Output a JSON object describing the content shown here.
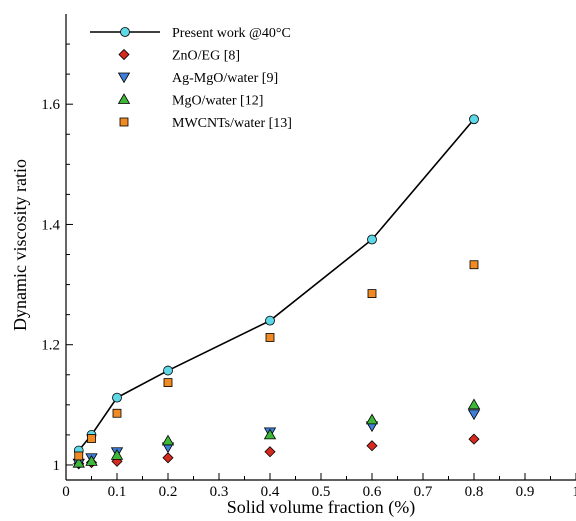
{
  "chart_data": {
    "type": "scatter",
    "xlabel": "Solid volume fraction (%)",
    "ylabel": "Dynamic viscosity ratio",
    "xlim": [
      0,
      1
    ],
    "ylim": [
      0.975,
      1.75
    ],
    "xticks": [
      "0",
      "0.1",
      "0.2",
      "0.3",
      "0.4",
      "0.5",
      "0.6",
      "0.7",
      "0.8",
      "0.9",
      "1"
    ],
    "yticks": [
      "1",
      "1.2",
      "1.4",
      "1.6"
    ],
    "ytick_values": [
      1,
      1.2,
      1.4,
      1.6
    ],
    "grid": false,
    "legend_position": "top-left",
    "series": [
      {
        "name": "Present work @40°C",
        "marker": "circle",
        "line": true,
        "color": "#5ed8e6",
        "x": [
          0.025,
          0.05,
          0.1,
          0.2,
          0.4,
          0.6,
          0.8
        ],
        "y": [
          1.024,
          1.05,
          1.112,
          1.157,
          1.24,
          1.375,
          1.575
        ]
      },
      {
        "name": "ZnO/EG [8]",
        "marker": "diamond",
        "line": false,
        "color": "#d42a1f",
        "x": [
          0.025,
          0.05,
          0.1,
          0.2,
          0.4,
          0.6,
          0.8
        ],
        "y": [
          1.002,
          1.004,
          1.006,
          1.012,
          1.022,
          1.032,
          1.043
        ]
      },
      {
        "name": "Ag-MgO/water [9]",
        "marker": "triangle-down",
        "line": false,
        "color": "#3f7fd8",
        "x": [
          0.025,
          0.05,
          0.1,
          0.2,
          0.4,
          0.6,
          0.8
        ],
        "y": [
          1.003,
          1.012,
          1.022,
          1.03,
          1.055,
          1.065,
          1.085
        ]
      },
      {
        "name": "MgO/water [12]",
        "marker": "triangle-up",
        "line": false,
        "color": "#3fb83a",
        "x": [
          0.025,
          0.05,
          0.1,
          0.2,
          0.4,
          0.6,
          0.8
        ],
        "y": [
          1.003,
          1.006,
          1.016,
          1.04,
          1.05,
          1.075,
          1.1
        ]
      },
      {
        "name": "MWCNTs/water [13]",
        "marker": "square",
        "line": false,
        "color": "#f08a24",
        "x": [
          0.025,
          0.05,
          0.1,
          0.2,
          0.4,
          0.6,
          0.8
        ],
        "y": [
          1.015,
          1.044,
          1.086,
          1.137,
          1.212,
          1.285,
          1.333
        ]
      }
    ]
  }
}
